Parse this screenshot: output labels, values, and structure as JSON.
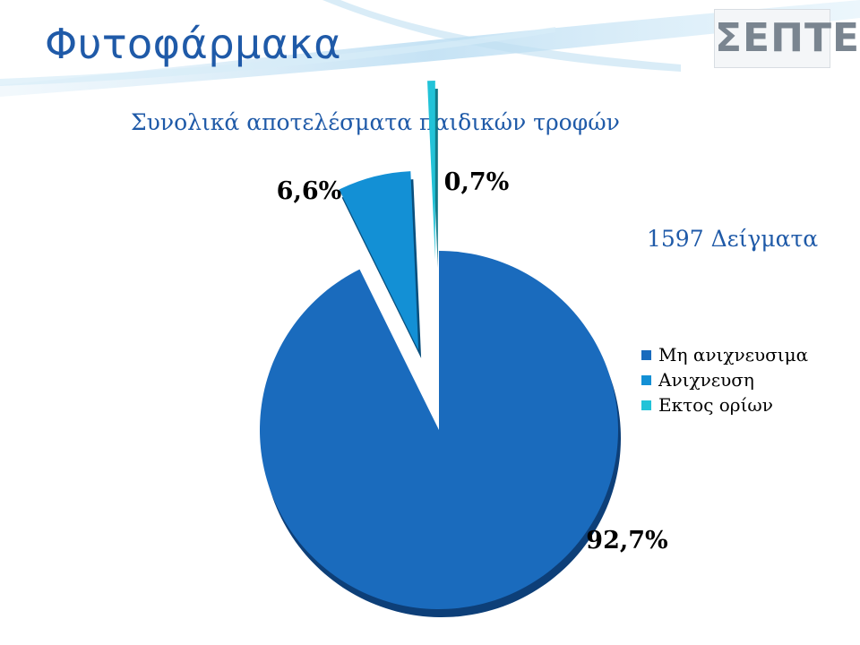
{
  "slide": {
    "title": "Φυτοφάρμακα",
    "subtitle": "Συνολικά αποτελέσματα παιδικών τροφών",
    "samples": "1597 Δείγματα",
    "logo_text": "ΣΕΠΤΕ"
  },
  "chart_data": {
    "type": "pie",
    "title": "",
    "exploded": true,
    "series": [
      {
        "name": "Μη ανιχνευσιμα",
        "value": 92.7,
        "label": "92,7%",
        "color": "#1a6bbd",
        "dark": "#0d3f78"
      },
      {
        "name": "Ανιχνευση",
        "value": 6.6,
        "label": "6,6%",
        "color": "#1390d5",
        "dark": "#0a4f7d"
      },
      {
        "name": "Εκτος ορίων",
        "value": 0.7,
        "label": "0,7%",
        "color": "#22c3d8",
        "dark": "#117a88"
      }
    ],
    "legend": {
      "position": "right",
      "entries": [
        "Μη ανιχνευσιμα",
        "Ανιχνευση",
        "Εκτος ορίων"
      ]
    }
  }
}
